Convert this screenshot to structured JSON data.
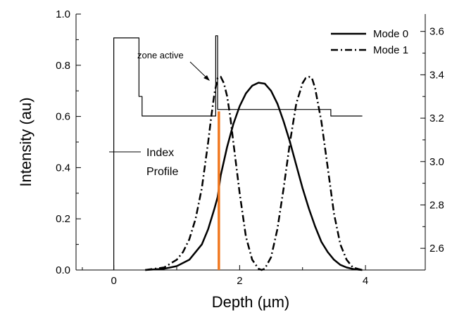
{
  "chart_data": {
    "type": "line",
    "xlabel": "Depth (µm)",
    "ylabel": "Intensity (au)",
    "xlim": [
      -0.6,
      4.95
    ],
    "ylim": [
      0.0,
      1.0
    ],
    "y2lim": [
      2.5,
      3.68
    ],
    "x_ticks": [
      0,
      2,
      4
    ],
    "y_ticks": [
      0.0,
      0.2,
      0.4,
      0.6,
      0.8,
      1.0
    ],
    "y2_ticks": [
      2.6,
      2.8,
      3.0,
      3.2,
      3.4,
      3.6
    ],
    "x_tick_labels": [
      "0",
      "2",
      "4"
    ],
    "y_tick_labels": [
      "0.0",
      "0.2",
      "0.4",
      "0.6",
      "0.8",
      "1.0"
    ],
    "y2_tick_labels": [
      "2.6",
      "2.8",
      "3.0",
      "3.2",
      "3.4",
      "3.6"
    ],
    "legend": {
      "position": "top-right",
      "entries": [
        "Mode 0",
        "Mode 1"
      ]
    },
    "grid": false,
    "series": [
      {
        "name": "Mode 0",
        "style": "solid",
        "color": "#000000",
        "x": [
          0.5,
          0.8,
          1.0,
          1.2,
          1.4,
          1.5,
          1.6,
          1.65,
          1.7,
          1.8,
          1.9,
          2.0,
          2.1,
          2.2,
          2.3,
          2.4,
          2.5,
          2.6,
          2.7,
          2.8,
          2.9,
          3.0,
          3.1,
          3.2,
          3.3,
          3.4,
          3.5,
          3.6,
          3.7,
          3.8,
          3.9,
          3.95
        ],
        "y": [
          0.0,
          0.005,
          0.015,
          0.04,
          0.1,
          0.16,
          0.24,
          0.285,
          0.37,
          0.48,
          0.57,
          0.64,
          0.69,
          0.72,
          0.732,
          0.728,
          0.7,
          0.65,
          0.58,
          0.5,
          0.41,
          0.32,
          0.24,
          0.17,
          0.11,
          0.07,
          0.04,
          0.02,
          0.01,
          0.004,
          0.001,
          0.0
        ]
      },
      {
        "name": "Mode 1",
        "style": "dash-dot",
        "color": "#000000",
        "x": [
          0.5,
          0.8,
          1.0,
          1.1,
          1.2,
          1.3,
          1.4,
          1.5,
          1.55,
          1.6,
          1.65,
          1.7,
          1.75,
          1.8,
          1.85,
          1.9,
          2.0,
          2.1,
          2.2,
          2.3,
          2.35,
          2.4,
          2.5,
          2.6,
          2.7,
          2.8,
          2.9,
          3.0,
          3.05,
          3.1,
          3.15,
          3.2,
          3.3,
          3.4,
          3.5,
          3.6,
          3.7,
          3.8,
          3.9,
          3.95
        ],
        "y": [
          0.0,
          0.01,
          0.04,
          0.07,
          0.12,
          0.2,
          0.32,
          0.5,
          0.6,
          0.69,
          0.75,
          0.755,
          0.73,
          0.68,
          0.6,
          0.5,
          0.3,
          0.13,
          0.04,
          0.005,
          0.0,
          0.005,
          0.05,
          0.16,
          0.32,
          0.5,
          0.65,
          0.73,
          0.75,
          0.755,
          0.75,
          0.71,
          0.58,
          0.4,
          0.22,
          0.1,
          0.04,
          0.01,
          0.003,
          0.0
        ]
      },
      {
        "name": "Index Profile",
        "style": "step",
        "axis": "right",
        "color": "#000000",
        "x": [
          0.0,
          0.0,
          0.4,
          0.4,
          0.45,
          0.45,
          1.62,
          1.62,
          1.65,
          1.65,
          1.7,
          1.7,
          3.45,
          3.45,
          3.5,
          3.5,
          3.95
        ],
        "y": [
          2.5,
          3.57,
          3.57,
          3.3,
          3.3,
          3.21,
          3.21,
          3.58,
          3.58,
          3.24,
          3.24,
          3.24,
          3.24,
          3.21,
          3.21,
          3.21,
          3.21
        ]
      }
    ],
    "marker_line": {
      "x": 1.67,
      "color": "#f07820",
      "y_from": 0.0,
      "y_to": 0.62
    },
    "annotations": [
      {
        "text": "zone active",
        "x": 0.88,
        "y": 0.82
      },
      {
        "text": "Index",
        "x": 1.05,
        "y": 0.46
      },
      {
        "text": "Profile",
        "x": 1.05,
        "y": 0.39
      }
    ]
  }
}
